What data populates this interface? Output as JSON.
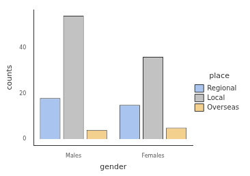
{
  "chart_data": {
    "type": "bar",
    "x_label": "gender",
    "y_label": "counts",
    "legend_title": "place",
    "legend": "right",
    "grid": false,
    "categories": [
      "Males",
      "Females"
    ],
    "series": [
      {
        "name": "Regional",
        "color": "#a9c4ee",
        "values": [
          18,
          15
        ]
      },
      {
        "name": "Local",
        "color": "#c2c2c2",
        "values": [
          54,
          36
        ]
      },
      {
        "name": "Overseas",
        "color": "#f3d08e",
        "values": [
          4,
          5
        ]
      }
    ],
    "ylim": [
      -2.7,
      56.7
    ],
    "yticks": [
      0,
      20,
      40
    ]
  }
}
